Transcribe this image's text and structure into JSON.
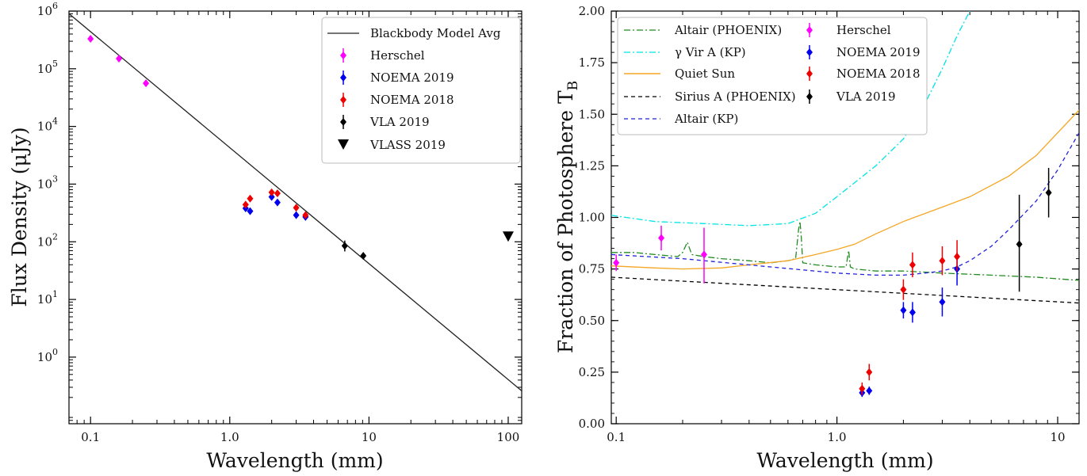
{
  "chart_data": [
    {
      "type": "scatter",
      "xlabel": "Wavelength (mm)",
      "ylabel": "Flux Density (μJy)",
      "xscale": "log",
      "yscale": "log",
      "xlim": [
        0.07,
        125
      ],
      "ylim": [
        0.07,
        1000000
      ],
      "xticks": [
        {
          "value": 0.1,
          "label": "0.1"
        },
        {
          "value": 1,
          "label": "1.0"
        },
        {
          "value": 10,
          "label": "10"
        },
        {
          "value": 100,
          "label": "100"
        }
      ],
      "yticks": [
        {
          "value": 1,
          "base": "10",
          "exp": "0"
        },
        {
          "value": 10,
          "base": "10",
          "exp": "1"
        },
        {
          "value": 100,
          "base": "10",
          "exp": "2"
        },
        {
          "value": 1000,
          "base": "10",
          "exp": "3"
        },
        {
          "value": 10000,
          "base": "10",
          "exp": "4"
        },
        {
          "value": 100000,
          "base": "10",
          "exp": "5"
        },
        {
          "value": 1000000,
          "base": "10",
          "exp": "6"
        }
      ],
      "lines": [
        {
          "name": "Blackbody Model Avg",
          "color": "#222222",
          "dash": "solid",
          "x": [
            0.07,
            125
          ],
          "y": [
            900000,
            0.26
          ]
        }
      ],
      "series": [
        {
          "name": "Herschel",
          "color": "#ff00ff",
          "marker": "diamond",
          "x": [
            0.1,
            0.16,
            0.25
          ],
          "y": [
            330000,
            150000,
            56000
          ],
          "err_lo": [
            300000,
            137000,
            51000
          ],
          "err_hi": [
            360000,
            163000,
            61000
          ]
        },
        {
          "name": "NOEMA 2019",
          "color": "#0000ee",
          "marker": "diamond",
          "x": [
            1.3,
            1.4,
            2.0,
            2.2,
            3.0,
            3.5
          ],
          "y": [
            380,
            340,
            600,
            480,
            290,
            270
          ],
          "err_lo": [
            340,
            300,
            560,
            440,
            265,
            245
          ],
          "err_hi": [
            420,
            380,
            640,
            520,
            315,
            295
          ]
        },
        {
          "name": "NOEMA 2018",
          "color": "#ee0000",
          "marker": "diamond",
          "x": [
            1.3,
            1.4,
            2.0,
            2.2,
            3.0,
            3.5
          ],
          "y": [
            440,
            560,
            720,
            690,
            390,
            290
          ],
          "err_lo": [
            400,
            500,
            680,
            650,
            360,
            265
          ],
          "err_hi": [
            480,
            620,
            760,
            730,
            420,
            315
          ]
        },
        {
          "name": "VLA 2019",
          "color": "#000000",
          "marker": "diamond",
          "x": [
            6.7,
            9.1
          ],
          "y": [
            85,
            57
          ],
          "err_lo": [
            68,
            51
          ],
          "err_hi": [
            105,
            63
          ]
        },
        {
          "name": "VLASS 2019",
          "color": "#000000",
          "marker": "triangle-down",
          "x": [
            100
          ],
          "y": [
            125
          ]
        }
      ],
      "legend": {
        "placement": "top-right",
        "entries": [
          "Blackbody Model Avg",
          "Herschel",
          "NOEMA 2019",
          "NOEMA 2018",
          "VLA 2019",
          "VLASS 2019"
        ]
      }
    },
    {
      "type": "line",
      "xlabel": "Wavelength (mm)",
      "ylabel_main": "Fraction of Photosphere T",
      "ylabel_sub": "B",
      "xscale": "log",
      "xlim": [
        0.095,
        12.5
      ],
      "ylim": [
        0,
        2.0
      ],
      "xticks": [
        {
          "value": 0.1,
          "label": "0.1"
        },
        {
          "value": 1,
          "label": "1.0"
        },
        {
          "value": 10,
          "label": "10"
        }
      ],
      "yticks": [
        {
          "value": 0,
          "label": "0.00"
        },
        {
          "value": 0.25,
          "label": "0.25"
        },
        {
          "value": 0.5,
          "label": "0.50"
        },
        {
          "value": 0.75,
          "label": "0.75"
        },
        {
          "value": 1.0,
          "label": "1.00"
        },
        {
          "value": 1.25,
          "label": "1.25"
        },
        {
          "value": 1.5,
          "label": "1.50"
        },
        {
          "value": 1.75,
          "label": "1.75"
        },
        {
          "value": 2.0,
          "label": "2.00"
        }
      ],
      "lines": [
        {
          "name": "Altair (PHOENIX)",
          "color": "#228b22",
          "dash": "8,3,2,3",
          "x": [
            0.095,
            0.12,
            0.15,
            0.19,
            0.2,
            0.21,
            0.22,
            0.25,
            0.3,
            0.4,
            0.5,
            0.6,
            0.65,
            0.67,
            0.68,
            0.69,
            0.7,
            0.8,
            1.0,
            1.1,
            1.13,
            1.15,
            1.2,
            1.5,
            2,
            3,
            5,
            8,
            12.5
          ],
          "y": [
            0.83,
            0.83,
            0.82,
            0.81,
            0.83,
            0.88,
            0.82,
            0.81,
            0.8,
            0.79,
            0.78,
            0.79,
            0.8,
            0.94,
            0.98,
            0.9,
            0.78,
            0.77,
            0.76,
            0.76,
            0.84,
            0.76,
            0.75,
            0.74,
            0.74,
            0.73,
            0.72,
            0.71,
            0.695
          ]
        },
        {
          "name": "γ Vir A (KP)",
          "color": "#00e5e5",
          "dash": "8,3,2,3",
          "x": [
            0.095,
            0.15,
            0.25,
            0.4,
            0.6,
            0.8,
            1.0,
            1.5,
            2.0,
            2.5,
            3.0,
            3.5,
            4.0,
            4.3
          ],
          "y": [
            1.01,
            0.98,
            0.97,
            0.96,
            0.97,
            1.02,
            1.1,
            1.25,
            1.38,
            1.55,
            1.72,
            1.88,
            2.0,
            2.05
          ]
        },
        {
          "name": "Quiet Sun",
          "color": "#f5a623",
          "dash": "solid",
          "x": [
            0.095,
            0.15,
            0.2,
            0.3,
            0.4,
            0.6,
            0.8,
            1.0,
            1.2,
            1.5,
            2,
            3,
            4,
            6,
            8,
            12.5
          ],
          "y": [
            0.765,
            0.755,
            0.75,
            0.755,
            0.77,
            0.79,
            0.82,
            0.845,
            0.87,
            0.92,
            0.98,
            1.05,
            1.1,
            1.2,
            1.3,
            1.52
          ]
        },
        {
          "name": "Sirius A (PHOENIX)",
          "color": "#000000",
          "dash": "5,4",
          "x": [
            0.095,
            12.5
          ],
          "y": [
            0.71,
            0.585
          ]
        },
        {
          "name": "Altair (KP)",
          "color": "#2222dd",
          "dash": "5,4",
          "x": [
            0.095,
            0.2,
            0.5,
            1.0,
            1.5,
            2.0,
            2.5,
            3.0,
            3.5,
            4.0,
            5.0,
            6.0,
            8.0,
            10.0,
            12.5
          ],
          "y": [
            0.82,
            0.8,
            0.76,
            0.73,
            0.72,
            0.72,
            0.73,
            0.74,
            0.76,
            0.79,
            0.86,
            0.94,
            1.08,
            1.23,
            1.41
          ]
        }
      ],
      "series": [
        {
          "name": "Herschel",
          "color": "#ff00ff",
          "marker": "diamond",
          "x": [
            0.1,
            0.16,
            0.25
          ],
          "y": [
            0.78,
            0.9,
            0.82
          ],
          "err_lo": [
            0.74,
            0.84,
            0.68
          ],
          "err_hi": [
            0.82,
            0.96,
            0.95
          ]
        },
        {
          "name": "NOEMA 2019",
          "color": "#0000ee",
          "marker": "diamond",
          "x": [
            1.3,
            1.4,
            2.0,
            2.2,
            3.0,
            3.5
          ],
          "y": [
            0.15,
            0.16,
            0.55,
            0.54,
            0.59,
            0.75
          ],
          "err_lo": [
            0.13,
            0.14,
            0.51,
            0.49,
            0.52,
            0.67
          ],
          "err_hi": [
            0.17,
            0.18,
            0.59,
            0.59,
            0.66,
            0.83
          ]
        },
        {
          "name": "NOEMA 2018",
          "color": "#ee0000",
          "marker": "diamond",
          "x": [
            1.3,
            1.4,
            2.0,
            2.2,
            3.0,
            3.5
          ],
          "y": [
            0.17,
            0.25,
            0.65,
            0.77,
            0.79,
            0.81
          ],
          "err_lo": [
            0.14,
            0.21,
            0.6,
            0.71,
            0.72,
            0.74
          ],
          "err_hi": [
            0.2,
            0.29,
            0.7,
            0.83,
            0.86,
            0.89
          ]
        },
        {
          "name": "VLA 2019",
          "color": "#000000",
          "marker": "diamond",
          "x": [
            6.7,
            9.1
          ],
          "y": [
            0.87,
            1.12
          ],
          "err_lo": [
            0.64,
            1.0
          ],
          "err_hi": [
            1.11,
            1.24
          ]
        }
      ],
      "legend": {
        "placement": "top-left",
        "entries": [
          "Altair (PHOENIX)",
          "γ Vir A (KP)",
          "Quiet Sun",
          "Sirius A (PHOENIX)",
          "Altair (KP)",
          "Herschel",
          "NOEMA 2019",
          "NOEMA 2018",
          "VLA 2019"
        ]
      }
    }
  ]
}
